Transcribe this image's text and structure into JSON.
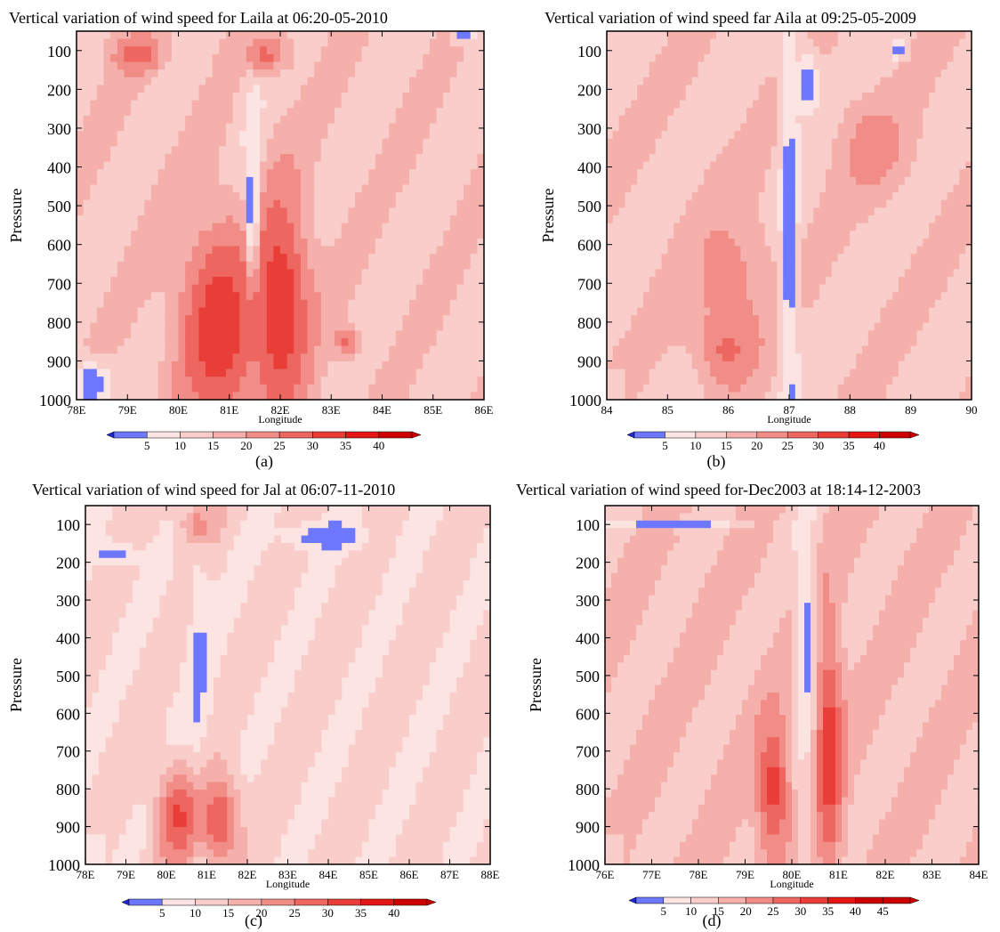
{
  "figure": {
    "title": ""
  },
  "colors": {
    "shade_0": "#6e78ff",
    "shade_1": "#fbe4e2",
    "shade_2": "#f8cdca",
    "shade_3": "#f5b0ac",
    "shade_4": "#f18c86",
    "shade_5": "#ed6660",
    "shade_6": "#e93e38",
    "shade_7": "#e41616",
    "shade_8": "#cc0000",
    "low_arrow": "#2026d8",
    "axis": "#000000"
  },
  "chart_data": [
    {
      "type": "heatmap",
      "panel_label": "(a)",
      "title": "Vertical variation of wind speed for Laila at 06:20-05-2010",
      "xlabel": "Longitude",
      "ylabel": "Pressure",
      "xlim": [
        78,
        86
      ],
      "x_ticks": [
        "78E",
        "79E",
        "80E",
        "81E",
        "82E",
        "83E",
        "84E",
        "85E",
        "86E"
      ],
      "ylim": [
        1000,
        50
      ],
      "y_ticks": [
        "100",
        "200",
        "300",
        "400",
        "500",
        "600",
        "700",
        "800",
        "900",
        "1000"
      ],
      "colorbar_ticks": [
        "5",
        "10",
        "15",
        "20",
        "25",
        "30",
        "35",
        "40"
      ],
      "core_center_lon": 81.45,
      "features": [
        {
          "lon": 80.8,
          "pressure": 820,
          "value": 36,
          "spread_lon": 0.8,
          "spread_p": 280
        },
        {
          "lon": 82.0,
          "pressure": 760,
          "value": 36,
          "spread_lon": 0.6,
          "spread_p": 310
        },
        {
          "lon": 79.2,
          "pressure": 110,
          "value": 30,
          "spread_lon": 0.5,
          "spread_p": 50
        },
        {
          "lon": 81.7,
          "pressure": 110,
          "value": 28,
          "spread_lon": 0.5,
          "spread_p": 50
        },
        {
          "lon": 81.45,
          "pressure": 500,
          "value": 3,
          "spread_lon": 0.12,
          "spread_p": 160
        },
        {
          "lon": 78.3,
          "pressure": 960,
          "value": 3,
          "spread_lon": 0.35,
          "spread_p": 60
        },
        {
          "lon": 85.6,
          "pressure": 60,
          "value": 3,
          "spread_lon": 0.2,
          "spread_p": 20
        },
        {
          "lon": 83.3,
          "pressure": 850,
          "value": 28,
          "spread_lon": 0.25,
          "spread_p": 40
        }
      ],
      "background": 16
    },
    {
      "type": "heatmap",
      "panel_label": "(b)",
      "title": "Vertical variation of wind speed far Aila at 09:25-05-2009",
      "xlabel": "Longitude",
      "ylabel": "Pressure",
      "xlim": [
        84,
        90
      ],
      "x_ticks": [
        "84",
        "85",
        "86",
        "87",
        "88",
        "89",
        "90"
      ],
      "ylim": [
        1000,
        50
      ],
      "y_ticks": [
        "100",
        "200",
        "300",
        "400",
        "500",
        "600",
        "700",
        "800",
        "900",
        "1000"
      ],
      "colorbar_ticks": [
        "5",
        "10",
        "15",
        "20",
        "25",
        "30",
        "35",
        "40"
      ],
      "core_center_lon": 87.0,
      "features": [
        {
          "lon": 86.0,
          "pressure": 860,
          "value": 33,
          "spread_lon": 0.4,
          "spread_p": 90
        },
        {
          "lon": 86.0,
          "pressure": 700,
          "value": 24,
          "spread_lon": 0.7,
          "spread_p": 220
        },
        {
          "lon": 88.4,
          "pressure": 350,
          "value": 25,
          "spread_lon": 0.6,
          "spread_p": 120
        },
        {
          "lon": 87.0,
          "pressure": 600,
          "value": 3,
          "spread_lon": 0.1,
          "spread_p": 450
        },
        {
          "lon": 87.3,
          "pressure": 180,
          "value": 3,
          "spread_lon": 0.18,
          "spread_p": 80
        },
        {
          "lon": 88.8,
          "pressure": 100,
          "value": 3,
          "spread_lon": 0.12,
          "spread_p": 20
        }
      ],
      "background": 16
    },
    {
      "type": "heatmap",
      "panel_label": "(c)",
      "title": "Vertical variation of wind speed for Jal at 06:07-11-2010",
      "xlabel": "Longitude",
      "ylabel": "Pressure",
      "xlim": [
        78,
        88
      ],
      "x_ticks": [
        "78E",
        "79E",
        "80E",
        "81E",
        "82E",
        "83E",
        "84E",
        "85E",
        "86E",
        "87E",
        "88E"
      ],
      "ylim": [
        1000,
        50
      ],
      "y_ticks": [
        "100",
        "200",
        "300",
        "400",
        "500",
        "600",
        "700",
        "800",
        "900",
        "1000"
      ],
      "colorbar_ticks": [
        "5",
        "10",
        "15",
        "20",
        "25",
        "30",
        "35",
        "40"
      ],
      "core_center_lon": 80.8,
      "features": [
        {
          "lon": 80.3,
          "pressure": 880,
          "value": 33,
          "spread_lon": 0.55,
          "spread_p": 130
        },
        {
          "lon": 81.3,
          "pressure": 880,
          "value": 32,
          "spread_lon": 0.5,
          "spread_p": 120
        },
        {
          "lon": 80.8,
          "pressure": 100,
          "value": 24,
          "spread_lon": 0.5,
          "spread_p": 60
        },
        {
          "lon": 80.8,
          "pressure": 520,
          "value": 4,
          "spread_lon": 0.08,
          "spread_p": 120
        },
        {
          "lon": 84.0,
          "pressure": 130,
          "value": 3,
          "spread_lon": 1.0,
          "spread_p": 35
        },
        {
          "lon": 78.7,
          "pressure": 180,
          "value": 4,
          "spread_lon": 0.5,
          "spread_p": 30
        }
      ],
      "background": 13
    },
    {
      "type": "heatmap",
      "panel_label": "(d)",
      "title": "Vertical variation of wind speed for-Dec2003 at 18:14-12-2003",
      "xlabel": "Longitude",
      "ylabel": "Pressure",
      "xlim": [
        76,
        84
      ],
      "x_ticks": [
        "76E",
        "77E",
        "78E",
        "79E",
        "80E",
        "81E",
        "82E",
        "83E",
        "84E"
      ],
      "ylim": [
        1000,
        50
      ],
      "y_ticks": [
        "100",
        "200",
        "300",
        "400",
        "500",
        "600",
        "700",
        "800",
        "900",
        "1000"
      ],
      "colorbar_ticks": [
        "5",
        "10",
        "15",
        "20",
        "25",
        "30",
        "35",
        "40",
        "45"
      ],
      "core_center_lon": 80.3,
      "features": [
        {
          "lon": 79.6,
          "pressure": 800,
          "value": 34,
          "spread_lon": 0.35,
          "spread_p": 190
        },
        {
          "lon": 80.8,
          "pressure": 700,
          "value": 35,
          "spread_lon": 0.3,
          "spread_p": 330
        },
        {
          "lon": 80.3,
          "pressure": 420,
          "value": 3,
          "spread_lon": 0.15,
          "spread_p": 180
        },
        {
          "lon": 77.4,
          "pressure": 100,
          "value": 4,
          "spread_lon": 1.4,
          "spread_p": 12
        }
      ],
      "background": 17
    }
  ]
}
